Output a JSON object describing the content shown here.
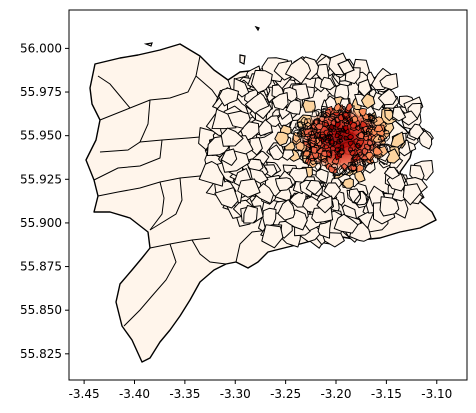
{
  "chart_data": {
    "type": "choropleth",
    "title": "",
    "xlabel": "",
    "ylabel": "",
    "xlim": [
      -3.465,
      -3.07
    ],
    "ylim": [
      55.81,
      56.022
    ],
    "xticks": [
      "-3.45",
      "-3.40",
      "-3.35",
      "-3.30",
      "-3.25",
      "-3.20",
      "-3.15",
      "-3.10"
    ],
    "yticks": [
      "55.825",
      "55.850",
      "55.875",
      "55.900",
      "55.925",
      "55.950",
      "55.975",
      "56.000"
    ],
    "colormap": "OrRd",
    "edgecolor": "#000000",
    "base_fill": "#fff5eb",
    "high_fill": "#7f0000",
    "hotspot": {
      "lon": -3.195,
      "lat": 55.948
    },
    "grid": false,
    "legend": false
  }
}
